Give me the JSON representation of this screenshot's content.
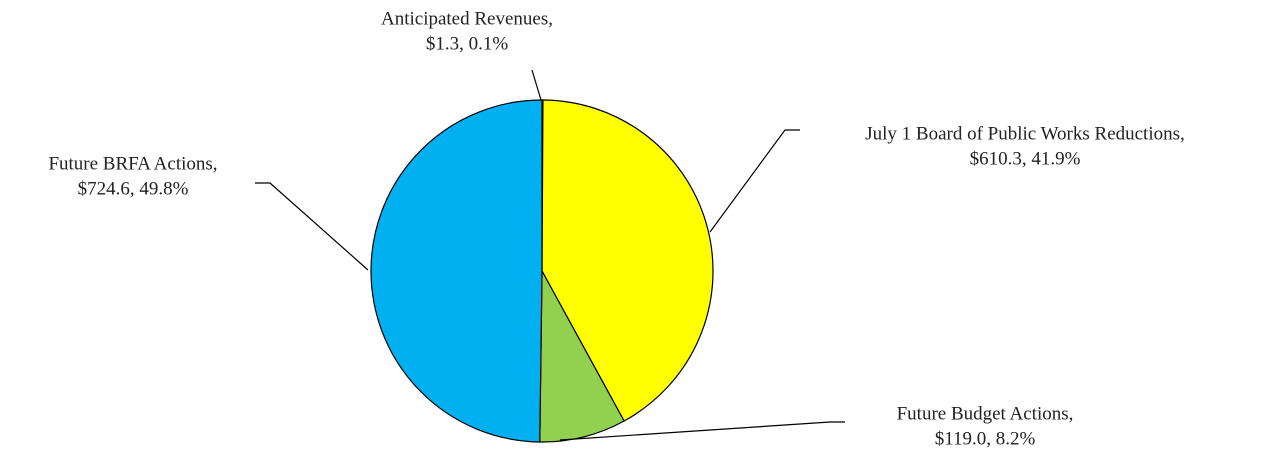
{
  "chart_data": {
    "type": "pie",
    "categories": [
      "Anticipated Revenues,",
      "July 1 Board of Public Works Reductions,",
      "Future Budget Actions,",
      "Future BRFA Actions,"
    ],
    "values": [
      1.3,
      610.3,
      119.0,
      724.6
    ],
    "value_labels": [
      "$1.3, 0.1%",
      "$610.3, 41.9%",
      "$119.0, 8.2%",
      "$724.6, 49.8%"
    ],
    "colors": [
      "#1f3864",
      "#ffff00",
      "#92d050",
      "#00b0f0"
    ]
  }
}
